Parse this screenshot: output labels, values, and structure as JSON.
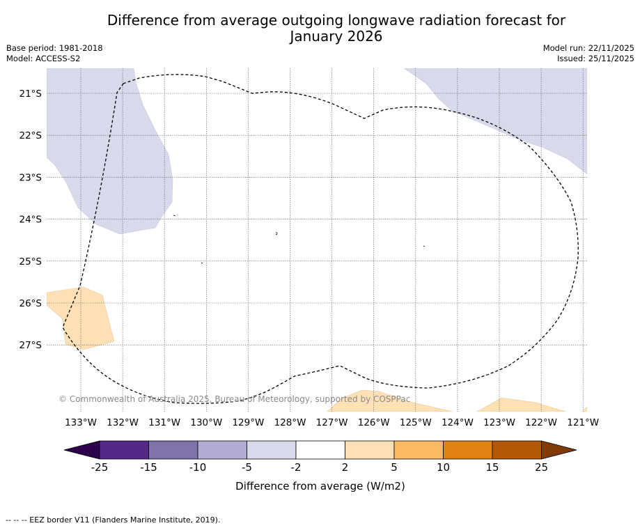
{
  "title_line1": "Difference from average outgoing longwave radiation forecast for",
  "title_line2": "January 2026",
  "base_period": "Base period: 1981-2018",
  "model": "Model: ACCESS-S2",
  "model_run": "Model run: 22/11/2025",
  "issued": "Issued: 25/11/2025",
  "copyright": "© Commonwealth of Australia 2025, Bureau of Meteorology, supported by COSPPac",
  "lat_labels": [
    "21°S",
    "22°S",
    "23°S",
    "24°S",
    "25°S",
    "26°S",
    "27°S"
  ],
  "lon_labels": [
    "133°W",
    "132°W",
    "131°W",
    "130°W",
    "129°W",
    "128°W",
    "127°W",
    "126°W",
    "125°W",
    "124°W",
    "123°W",
    "122°W",
    "121°W"
  ],
  "colorbar": {
    "label": "Difference from average (W/m2)",
    "ticks": [
      "-25",
      "-15",
      "-10",
      "-5",
      "-2",
      "2",
      "5",
      "10",
      "15",
      "25"
    ],
    "colors": [
      "#2d004b",
      "#542788",
      "#8073ac",
      "#b2abd2",
      "#d8daeb",
      "#ffffff",
      "#fee0b6",
      "#fdb863",
      "#e08214",
      "#b35806",
      "#7f3b08"
    ]
  },
  "footer": "--  --  -- EEZ border V11 (Flanders Marine Institute, 2019)."
}
